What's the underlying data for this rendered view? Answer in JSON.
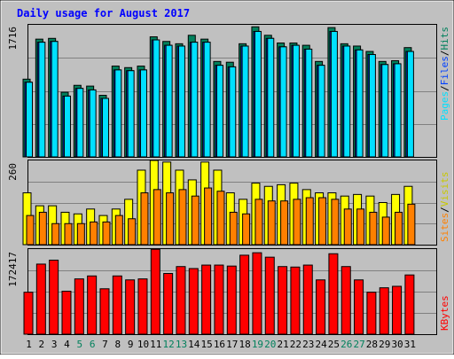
{
  "chart_data": [
    {
      "type": "bar",
      "title": "Daily usage for August 2017",
      "ymax_label": "1716",
      "categories": [
        "1",
        "2",
        "3",
        "4",
        "5",
        "6",
        "7",
        "8",
        "9",
        "10",
        "11",
        "12",
        "13",
        "14",
        "15",
        "16",
        "17",
        "18",
        "19",
        "20",
        "21",
        "22",
        "23",
        "24",
        "25",
        "26",
        "27",
        "28",
        "29",
        "30",
        "31"
      ],
      "weekend_days": [
        "5",
        "6",
        "12",
        "13",
        "19",
        "20",
        "26",
        "27"
      ],
      "legend": [
        "Pages",
        "Files",
        "Hits"
      ],
      "series": [
        {
          "name": "Hits",
          "values": [
            1010,
            1530,
            1540,
            840,
            930,
            920,
            800,
            1180,
            1160,
            1180,
            1560,
            1500,
            1470,
            1580,
            1530,
            1240,
            1230,
            1470,
            1690,
            1580,
            1480,
            1480,
            1450,
            1240,
            1680,
            1470,
            1440,
            1370,
            1240,
            1250,
            1420
          ]
        },
        {
          "name": "Files",
          "values": [
            970,
            1490,
            1500,
            790,
            890,
            870,
            760,
            1130,
            1120,
            1130,
            1520,
            1450,
            1440,
            1490,
            1490,
            1190,
            1170,
            1440,
            1630,
            1540,
            1430,
            1450,
            1400,
            1190,
            1630,
            1440,
            1390,
            1330,
            1200,
            1210,
            1370
          ]
        },
        {
          "name": "Pages",
          "values": [
            970,
            1490,
            1500,
            790,
            890,
            870,
            760,
            1130,
            1120,
            1130,
            1520,
            1450,
            1440,
            1490,
            1490,
            1190,
            1170,
            1440,
            1630,
            1540,
            1430,
            1450,
            1400,
            1190,
            1630,
            1440,
            1390,
            1330,
            1200,
            1210,
            1370
          ]
        }
      ]
    },
    {
      "type": "bar",
      "ymax_label": "260",
      "categories": [
        "1",
        "2",
        "3",
        "4",
        "5",
        "6",
        "7",
        "8",
        "9",
        "10",
        "11",
        "12",
        "13",
        "14",
        "15",
        "16",
        "17",
        "18",
        "19",
        "20",
        "21",
        "22",
        "23",
        "24",
        "25",
        "26",
        "27",
        "28",
        "29",
        "30",
        "31"
      ],
      "legend": [
        "Sites",
        "Visits"
      ],
      "series": [
        {
          "name": "Visits",
          "values": [
            160,
            120,
            120,
            100,
            95,
            110,
            90,
            110,
            140,
            230,
            260,
            255,
            230,
            200,
            255,
            230,
            160,
            140,
            190,
            180,
            185,
            190,
            170,
            160,
            160,
            150,
            155,
            150,
            130,
            155,
            180
          ]
        },
        {
          "name": "Sites",
          "values": [
            90,
            100,
            65,
            65,
            65,
            70,
            70,
            90,
            80,
            160,
            170,
            160,
            170,
            150,
            175,
            165,
            100,
            95,
            140,
            135,
            135,
            140,
            145,
            145,
            140,
            110,
            110,
            100,
            85,
            100,
            125
          ]
        }
      ]
    },
    {
      "type": "bar",
      "ymax_label": "172417",
      "categories": [
        "1",
        "2",
        "3",
        "4",
        "5",
        "6",
        "7",
        "8",
        "9",
        "10",
        "11",
        "12",
        "13",
        "14",
        "15",
        "16",
        "17",
        "18",
        "19",
        "20",
        "21",
        "22",
        "23",
        "24",
        "25",
        "26",
        "27",
        "28",
        "29",
        "30",
        "31"
      ],
      "legend": [
        "KBytes"
      ],
      "series": [
        {
          "name": "KBytes",
          "values": [
            85000,
            142000,
            150000,
            87000,
            112000,
            118000,
            92000,
            118000,
            110000,
            112000,
            172000,
            123000,
            137000,
            133000,
            140000,
            140000,
            138000,
            160000,
            165000,
            156000,
            137000,
            136000,
            140000,
            110000,
            163000,
            137000,
            110000,
            85000,
            94000,
            97000,
            120000
          ]
        }
      ]
    }
  ],
  "colors": {
    "title": "#0000ff",
    "panel_bg": "#c0c0c0",
    "hits": "#00805c",
    "files": "#0040ff",
    "pages": "#00e0ff",
    "visits": "#ffff00",
    "sites": "#ff8000",
    "kbytes": "#ff0000",
    "grid": "#808080",
    "weekend_label": "#00805c",
    "weekday_label": "#000000"
  }
}
